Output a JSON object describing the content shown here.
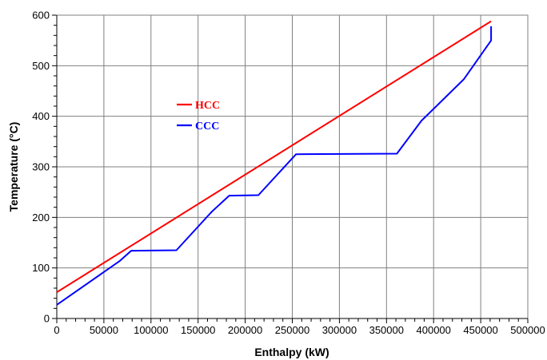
{
  "chart_data": {
    "type": "line",
    "title": "",
    "xlabel": "Enthalpy (kW)",
    "ylabel": "Temperature (°C)",
    "xlim": [
      0,
      500000
    ],
    "ylim": [
      0,
      600
    ],
    "xticks": [
      0,
      50000,
      100000,
      150000,
      200000,
      250000,
      300000,
      350000,
      400000,
      450000,
      500000
    ],
    "yticks": [
      0,
      100,
      200,
      300,
      400,
      500,
      600
    ],
    "grid": true,
    "legend_position": "upper-left-inside",
    "series": [
      {
        "name": "HCC",
        "color": "#ff0000",
        "points": [
          [
            0,
            52
          ],
          [
            461000,
            588
          ]
        ]
      },
      {
        "name": "CCC",
        "color": "#0000ff",
        "points": [
          [
            0,
            27
          ],
          [
            67000,
            114
          ],
          [
            79000,
            134
          ],
          [
            127000,
            135
          ],
          [
            162000,
            206
          ],
          [
            165000,
            212
          ],
          [
            183000,
            243
          ],
          [
            214000,
            244
          ],
          [
            254000,
            325
          ],
          [
            361000,
            326
          ],
          [
            387000,
            391
          ],
          [
            432000,
            473
          ],
          [
            461000,
            550
          ],
          [
            461000,
            578
          ]
        ]
      }
    ]
  }
}
